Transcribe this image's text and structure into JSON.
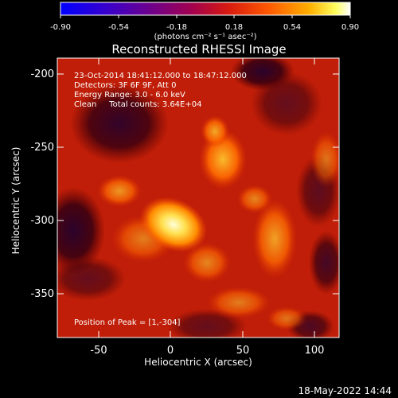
{
  "colorbar": {
    "ticks": [
      "-0.90",
      "-0.54",
      "-0.18",
      "0.18",
      "0.54",
      "0.90"
    ],
    "units": "(photons cm⁻² s⁻¹ asec⁻²)",
    "colors": [
      "#0000ff",
      "#4000c0",
      "#700090",
      "#b00040",
      "#e02000",
      "#ff6000",
      "#ffb000",
      "#ffff80",
      "#ffffff"
    ]
  },
  "title": "Reconstructed RHESSI Image",
  "info": {
    "line1": "23-Oct-2014 18:41:12.000 to 18:47:12.000",
    "line2": "Detectors: 3F 6F 9F, Att 0",
    "line3": "Energy Range: 3.0 - 6.0 keV",
    "line4": "Clean     Total counts: 3.64E+04"
  },
  "peak_label": "Position of Peak = [1,-304]",
  "axes": {
    "xlabel": "Heliocentric X (arcsec)",
    "ylabel": "Heliocentric Y (arcsec)",
    "xticks": [
      "-50",
      "0",
      "50",
      "100"
    ],
    "yticks": [
      "-200",
      "-250",
      "-300",
      "-350"
    ]
  },
  "footer_date": "18-May-2022 14:44"
}
